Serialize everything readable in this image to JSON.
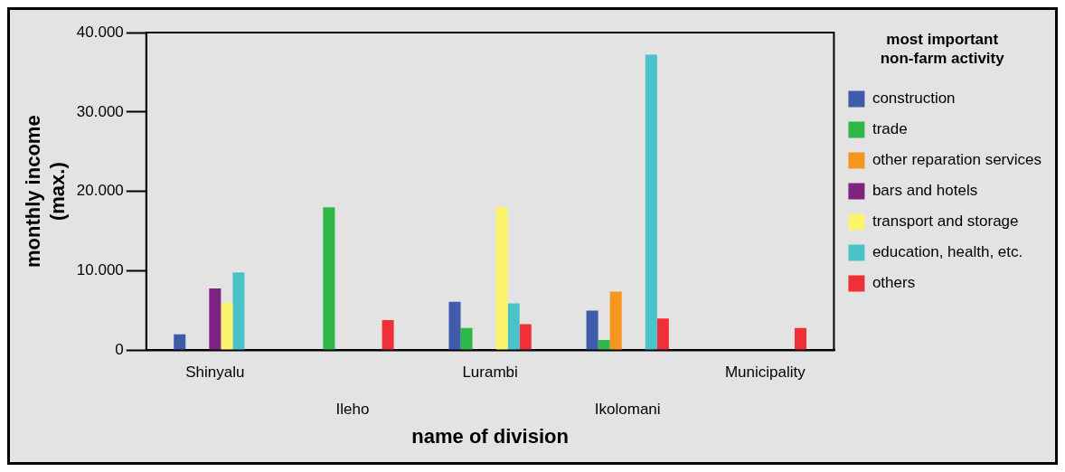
{
  "chart_data": {
    "type": "bar",
    "xlabel": "name of division",
    "ylabel": "monthly income (max.)",
    "legend_title": "most important non-farm activity",
    "categories": [
      "Shinyalu",
      "Ileho",
      "Lurambi",
      "Ikolomani",
      "Municipality"
    ],
    "series": [
      {
        "name": "construction",
        "color": "#3f5bac",
        "values": [
          2000,
          0,
          6100,
          5000,
          0
        ]
      },
      {
        "name": "trade",
        "color": "#2fb84a",
        "values": [
          0,
          18000,
          2800,
          1300,
          0
        ]
      },
      {
        "name": "other reparation services",
        "color": "#f7951e",
        "values": [
          0,
          0,
          0,
          7400,
          0
        ]
      },
      {
        "name": "bars and hotels",
        "color": "#7d2480",
        "values": [
          7800,
          0,
          0,
          0,
          0
        ]
      },
      {
        "name": "transport and storage",
        "color": "#fbf56d",
        "values": [
          6000,
          0,
          18000,
          0,
          0
        ]
      },
      {
        "name": "education, health, etc.",
        "color": "#48c4c8",
        "values": [
          9800,
          0,
          5900,
          37200,
          0
        ]
      },
      {
        "name": "others",
        "color": "#ef3039",
        "values": [
          0,
          3800,
          3300,
          4000,
          2800
        ]
      }
    ],
    "ylim": [
      0,
      40000
    ],
    "yticks": [
      {
        "value": 0,
        "label": "0"
      },
      {
        "value": 10000,
        "label": "10.000"
      },
      {
        "value": 20000,
        "label": "20.000"
      },
      {
        "value": 30000,
        "label": "30.000"
      },
      {
        "value": 40000,
        "label": "40.000"
      }
    ],
    "grid": false,
    "legend": "right"
  }
}
